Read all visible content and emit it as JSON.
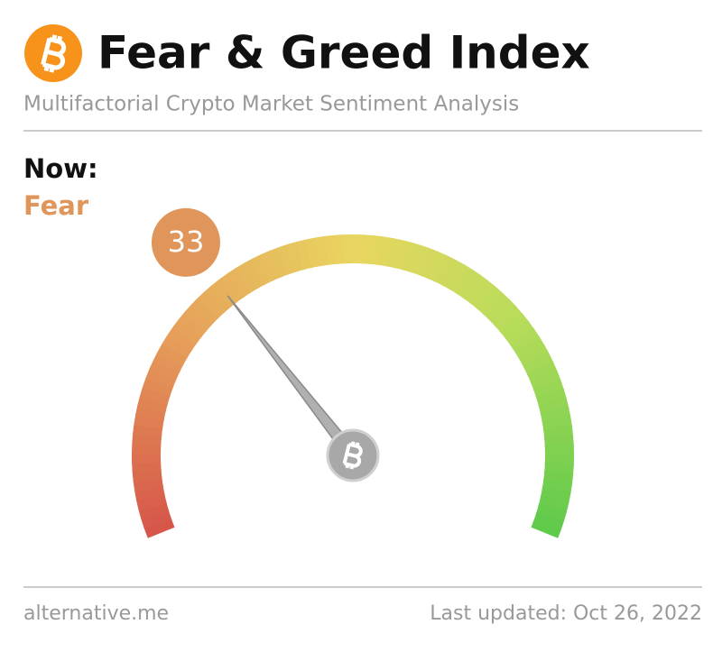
{
  "header": {
    "title": "Fear & Greed Index",
    "subtitle": "Multifactorial Crypto Market Sentiment Analysis"
  },
  "status": {
    "label": "Now:",
    "classification": "Fear"
  },
  "chart_data": {
    "type": "gauge",
    "value": 33,
    "ylim": [
      0,
      100
    ],
    "color": "#e0955a"
  },
  "footer": {
    "source": "alternative.me",
    "updated": "Last updated: Oct 26, 2022"
  }
}
